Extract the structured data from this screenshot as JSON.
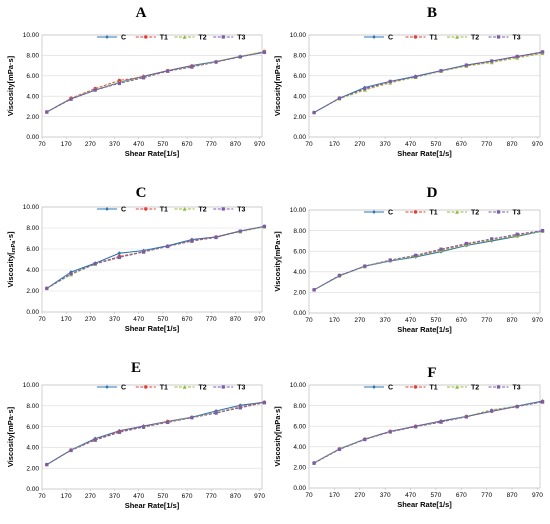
{
  "legend_names": [
    "C",
    "T1",
    "T2",
    "T3"
  ],
  "series_colors": [
    "#2e75b6",
    "#e0403a",
    "#8fbc3f",
    "#7b5ca8"
  ],
  "chart_data": [
    {
      "type": "line",
      "title": "A",
      "xlabel": "Shear Rate[1/s]",
      "ylabel": "Viscosity[mPa·s]",
      "ylim": [
        0,
        10
      ],
      "xlim": [
        70,
        980
      ],
      "x_ticks": [
        "70",
        "170",
        "270",
        "370",
        "470",
        "570",
        "670",
        "770",
        "870",
        "970"
      ],
      "y_ticks": [
        "0.00",
        "2.00",
        "4.00",
        "6.00",
        "8.00",
        "10.00"
      ],
      "x": [
        90,
        190,
        290,
        390,
        490,
        590,
        690,
        790,
        890,
        990
      ],
      "series": [
        {
          "name": "C",
          "values": [
            2.45,
            3.75,
            4.6,
            5.35,
            5.95,
            6.5,
            7.0,
            7.4,
            7.9,
            8.3
          ]
        },
        {
          "name": "T1",
          "values": [
            2.45,
            3.8,
            4.75,
            5.55,
            5.9,
            6.5,
            6.95,
            7.35,
            7.85,
            8.4
          ]
        },
        {
          "name": "T2",
          "values": [
            2.45,
            3.75,
            4.65,
            5.35,
            5.85,
            6.45,
            6.9,
            7.4,
            7.9,
            8.4
          ]
        },
        {
          "name": "T3",
          "values": [
            2.45,
            3.7,
            4.6,
            5.25,
            5.8,
            6.45,
            6.85,
            7.35,
            7.85,
            8.3
          ]
        }
      ]
    },
    {
      "type": "line",
      "title": "B",
      "xlabel": "Shear Rate[1/s]",
      "ylabel": "Viscosity[mPa·s]",
      "ylim": [
        0,
        10
      ],
      "xlim": [
        70,
        980
      ],
      "x_ticks": [
        "70",
        "170",
        "270",
        "370",
        "470",
        "570",
        "670",
        "770",
        "870",
        "970"
      ],
      "y_ticks": [
        "0.00",
        "2.00",
        "4.00",
        "6.00",
        "8.00",
        "10.00"
      ],
      "x": [
        90,
        190,
        290,
        390,
        490,
        590,
        690,
        790,
        890,
        990
      ],
      "series": [
        {
          "name": "C",
          "values": [
            2.4,
            3.8,
            4.85,
            5.45,
            5.95,
            6.5,
            7.05,
            7.45,
            7.9,
            8.3
          ]
        },
        {
          "name": "T1",
          "values": [
            2.4,
            3.8,
            4.7,
            5.4,
            5.9,
            6.45,
            7.0,
            7.4,
            7.85,
            8.3
          ]
        },
        {
          "name": "T2",
          "values": [
            2.4,
            3.75,
            4.6,
            5.3,
            5.85,
            6.45,
            6.95,
            7.3,
            7.75,
            8.2
          ]
        },
        {
          "name": "T3",
          "values": [
            2.4,
            3.8,
            4.75,
            5.45,
            5.9,
            6.5,
            7.05,
            7.45,
            7.9,
            8.35
          ]
        }
      ]
    },
    {
      "type": "line",
      "title": "C",
      "xlabel": "Shear Rate[1/s]",
      "ylabel": "Viscosity[",
      "ylabel_sub": "mPa",
      "ylabel_after": "·s]",
      "ylim": [
        0,
        10
      ],
      "xlim": [
        70,
        980
      ],
      "x_ticks": [
        "70",
        "170",
        "270",
        "370",
        "470",
        "570",
        "670",
        "770",
        "870",
        "970"
      ],
      "y_ticks": [
        "0.00",
        "2.00",
        "4.00",
        "6.00",
        "8.00",
        "10.00"
      ],
      "x": [
        90,
        190,
        290,
        390,
        490,
        590,
        690,
        790,
        890,
        990
      ],
      "series": [
        {
          "name": "C",
          "values": [
            2.25,
            3.8,
            4.65,
            5.6,
            5.85,
            6.3,
            6.9,
            7.15,
            7.7,
            8.15
          ]
        },
        {
          "name": "T1",
          "values": [
            2.25,
            3.6,
            4.6,
            5.3,
            5.75,
            6.25,
            6.8,
            7.15,
            7.7,
            8.15
          ]
        },
        {
          "name": "T2",
          "values": [
            2.25,
            3.55,
            4.55,
            5.2,
            5.75,
            6.25,
            6.75,
            7.1,
            7.65,
            8.1
          ]
        },
        {
          "name": "T3",
          "values": [
            2.25,
            3.65,
            4.6,
            5.2,
            5.7,
            6.25,
            6.75,
            7.1,
            7.7,
            8.15
          ]
        }
      ]
    },
    {
      "type": "line",
      "title": "D",
      "xlabel": "Shear Rate[1/s]",
      "ylabel": "Viscosity[mPa·s]",
      "ylim": [
        0,
        10
      ],
      "xlim": [
        70,
        980
      ],
      "x_ticks": [
        "70",
        "170",
        "270",
        "370",
        "470",
        "570",
        "670",
        "770",
        "870",
        "970"
      ],
      "y_ticks": [
        "0.00",
        "2.00",
        "4.00",
        "6.00",
        "8.00",
        "10.00"
      ],
      "x": [
        90,
        190,
        290,
        390,
        490,
        590,
        690,
        790,
        890,
        990
      ],
      "series": [
        {
          "name": "C",
          "values": [
            2.25,
            3.6,
            4.55,
            5.05,
            5.45,
            5.95,
            6.55,
            7.0,
            7.45,
            7.95
          ]
        },
        {
          "name": "T1",
          "values": [
            2.25,
            3.65,
            4.55,
            5.1,
            5.55,
            6.15,
            6.7,
            7.1,
            7.55,
            8.0
          ]
        },
        {
          "name": "T2",
          "values": [
            2.25,
            3.6,
            4.5,
            5.1,
            5.5,
            6.05,
            6.6,
            7.1,
            7.5,
            7.95
          ]
        },
        {
          "name": "T3",
          "values": [
            2.25,
            3.65,
            4.55,
            5.15,
            5.6,
            6.2,
            6.75,
            7.2,
            7.65,
            8.0
          ]
        }
      ]
    },
    {
      "type": "line",
      "title": "E",
      "xlabel": "Shear Rate[1/s]",
      "ylabel": "Viscosity[mPa·s]",
      "ylim": [
        0,
        10
      ],
      "xlim": [
        70,
        980
      ],
      "x_ticks": [
        "70",
        "170",
        "270",
        "370",
        "470",
        "570",
        "670",
        "770",
        "870",
        "970"
      ],
      "y_ticks": [
        "0.00",
        "2.00",
        "4.00",
        "6.00",
        "8.00",
        "10.00"
      ],
      "x": [
        90,
        190,
        290,
        390,
        490,
        590,
        690,
        790,
        890,
        990
      ],
      "series": [
        {
          "name": "C",
          "values": [
            2.35,
            3.75,
            4.85,
            5.6,
            6.05,
            6.5,
            6.9,
            7.5,
            8.05,
            8.35
          ]
        },
        {
          "name": "T1",
          "values": [
            2.35,
            3.75,
            4.75,
            5.55,
            6.0,
            6.5,
            6.9,
            7.35,
            7.9,
            8.35
          ]
        },
        {
          "name": "T2",
          "values": [
            2.35,
            3.75,
            4.7,
            5.45,
            5.95,
            6.45,
            6.9,
            7.35,
            7.85,
            8.3
          ]
        },
        {
          "name": "T3",
          "values": [
            2.35,
            3.7,
            4.7,
            5.45,
            5.95,
            6.4,
            6.85,
            7.3,
            7.8,
            8.3
          ]
        }
      ]
    },
    {
      "type": "line",
      "title": "F",
      "xlabel": "Shear Rate[1/s]",
      "ylabel": "Viscosity[mPa·s]",
      "ylim": [
        0,
        10
      ],
      "xlim": [
        70,
        980
      ],
      "x_ticks": [
        "70",
        "170",
        "270",
        "370",
        "470",
        "570",
        "670",
        "770",
        "870",
        "970"
      ],
      "y_ticks": [
        "0.00",
        "2.00",
        "4.00",
        "6.00",
        "8.00",
        "10.00"
      ],
      "x": [
        90,
        190,
        290,
        390,
        490,
        590,
        690,
        790,
        890,
        990
      ],
      "series": [
        {
          "name": "C",
          "values": [
            2.45,
            3.8,
            4.75,
            5.5,
            6.0,
            6.5,
            6.95,
            7.45,
            7.95,
            8.45
          ]
        },
        {
          "name": "T1",
          "values": [
            2.45,
            3.8,
            4.75,
            5.5,
            6.0,
            6.45,
            6.95,
            7.45,
            7.9,
            8.4
          ]
        },
        {
          "name": "T2",
          "values": [
            2.45,
            3.8,
            4.75,
            5.45,
            5.95,
            6.4,
            6.95,
            7.6,
            7.95,
            8.35
          ]
        },
        {
          "name": "T3",
          "values": [
            2.4,
            3.75,
            4.7,
            5.45,
            5.95,
            6.4,
            6.9,
            7.5,
            7.9,
            8.35
          ]
        }
      ]
    }
  ]
}
